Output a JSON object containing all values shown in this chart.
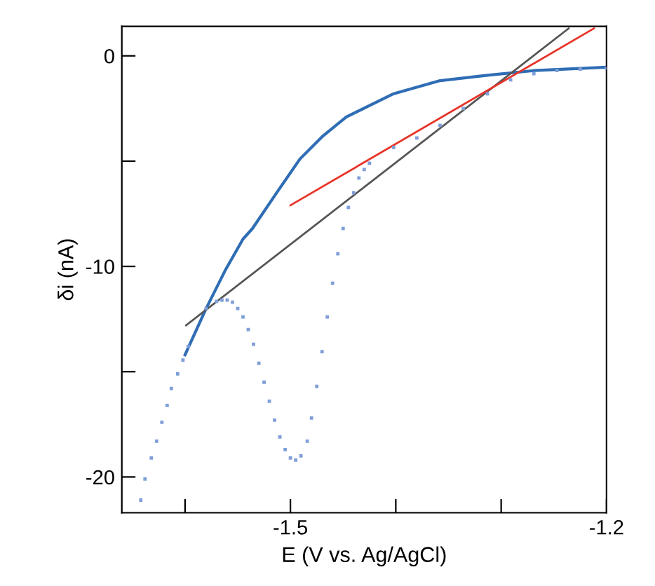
{
  "chart_data": {
    "type": "line",
    "xlabel": "E (V vs. Ag/AgCl)",
    "ylabel": "δi (nA)",
    "xlim": [
      -1.66,
      -1.2
    ],
    "ylim": [
      -21.7,
      1.4
    ],
    "xticks": [
      {
        "value": -1.6,
        "label": null
      },
      -1.5,
      {
        "value": -1.4,
        "label": null
      },
      {
        "value": -1.3,
        "label": null
      },
      -1.2
    ],
    "yticks": [
      {
        "value": -20,
        "label": "-20"
      },
      {
        "value": -15,
        "label": null
      },
      {
        "value": -10,
        "label": "-10"
      },
      {
        "value": -5,
        "label": null
      },
      0
    ],
    "grid": false,
    "legend": false,
    "series": [
      {
        "type": "scatter",
        "color": "#7f9fd8",
        "marker": "square",
        "x": [
          -1.642,
          -1.638,
          -1.632,
          -1.627,
          -1.622,
          -1.617,
          -1.613,
          -1.607,
          -1.602,
          -1.597,
          -1.58,
          -1.57,
          -1.565,
          -1.56,
          -1.555,
          -1.55,
          -1.545,
          -1.54,
          -1.535,
          -1.53,
          -1.525,
          -1.52,
          -1.515,
          -1.51,
          -1.505,
          -1.5,
          -1.495,
          -1.49,
          -1.484,
          -1.48,
          -1.475,
          -1.47,
          -1.465,
          -1.46,
          -1.455,
          -1.45,
          -1.445,
          -1.44,
          -1.435,
          -1.43,
          -1.425,
          -1.402,
          -1.38,
          -1.358,
          -1.336,
          -1.313,
          -1.291,
          -1.269,
          -1.247,
          -1.225,
          -1.2
        ],
        "values": [
          -21.1,
          -20.1,
          -19.1,
          -18.3,
          -17.4,
          -16.6,
          -15.8,
          -15.1,
          -14.45,
          -13.8,
          -12.0,
          -11.66,
          -11.6,
          -11.6,
          -11.7,
          -12.0,
          -12.4,
          -13.0,
          -13.7,
          -14.6,
          -15.5,
          -16.4,
          -17.3,
          -18.1,
          -18.7,
          -19.1,
          -19.2,
          -19.0,
          -18.3,
          -17.2,
          -15.7,
          -14.05,
          -12.4,
          -10.8,
          -9.4,
          -8.2,
          -7.2,
          -6.5,
          -5.8,
          -5.4,
          -5.1,
          -4.35,
          -3.9,
          -3.3,
          -2.5,
          -1.8,
          -1.14,
          -0.85,
          -0.7,
          -0.63,
          -0.59
        ]
      },
      {
        "color": "#2f6db5",
        "x": [
          -1.6,
          -1.58,
          -1.562,
          -1.545,
          -1.536,
          -1.513,
          -1.491,
          -1.469,
          -1.447,
          -1.402,
          -1.358,
          -1.313,
          -1.269,
          -1.2
        ],
        "values": [
          -14.2,
          -12.0,
          -10.2,
          -8.7,
          -8.2,
          -6.5,
          -4.9,
          -3.8,
          -2.9,
          -1.8,
          -1.18,
          -0.92,
          -0.7,
          -0.54
        ]
      },
      {
        "color": "#555555",
        "x": [
          -1.599,
          -1.236
        ],
        "values": [
          -12.8,
          1.3
        ]
      },
      {
        "color": "#e8342a",
        "x": [
          -1.5,
          -1.212
        ],
        "values": [
          -7.1,
          1.3
        ]
      }
    ]
  }
}
